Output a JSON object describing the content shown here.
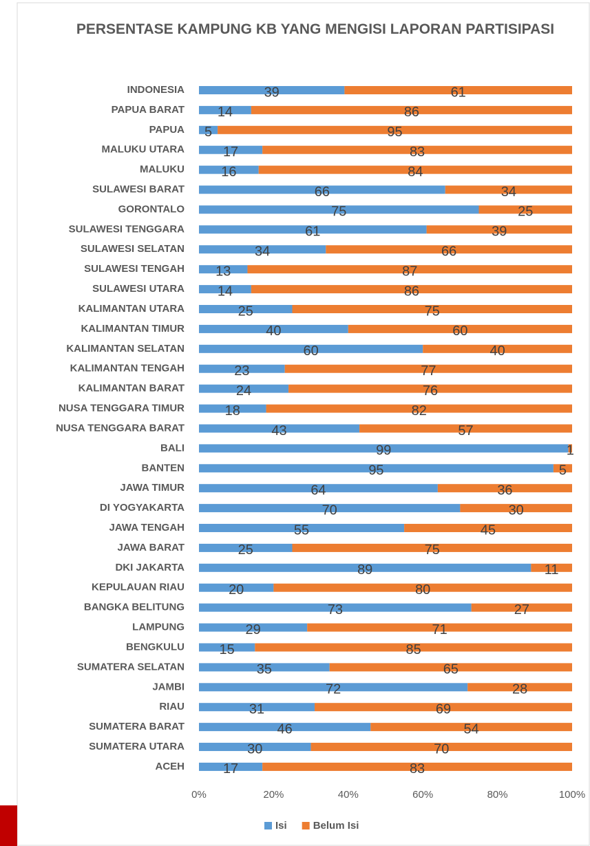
{
  "chart_data": {
    "type": "stacked-bar-horizontal",
    "title": "PERSENTASE KAMPUNG KB YANG MENGISI LAPORAN PARTISIPASI",
    "categories": [
      "INDONESIA",
      "PAPUA BARAT",
      "PAPUA",
      "MALUKU UTARA",
      "MALUKU",
      "SULAWESI BARAT",
      "GORONTALO",
      "SULAWESI TENGGARA",
      "SULAWESI SELATAN",
      "SULAWESI TENGAH",
      "SULAWESI UTARA",
      "KALIMANTAN UTARA",
      "KALIMANTAN TIMUR",
      "KALIMANTAN SELATAN",
      "KALIMANTAN TENGAH",
      "KALIMANTAN BARAT",
      "NUSA TENGGARA TIMUR",
      "NUSA TENGGARA BARAT",
      "BALI",
      "BANTEN",
      "JAWA TIMUR",
      "DI YOGYAKARTA",
      "JAWA TENGAH",
      "JAWA BARAT",
      "DKI JAKARTA",
      "KEPULAUAN RIAU",
      "BANGKA BELITUNG",
      "LAMPUNG",
      "BENGKULU",
      "SUMATERA SELATAN",
      "JAMBI",
      "RIAU",
      "SUMATERA BARAT",
      "SUMATERA UTARA",
      "ACEH"
    ],
    "series": [
      {
        "name": "Isi",
        "color": "#5b9bd5",
        "values": [
          39,
          14,
          5,
          17,
          16,
          66,
          75,
          61,
          34,
          13,
          14,
          25,
          40,
          60,
          23,
          24,
          18,
          43,
          99,
          95,
          64,
          70,
          55,
          25,
          89,
          20,
          73,
          29,
          15,
          35,
          72,
          31,
          46,
          30,
          17
        ]
      },
      {
        "name": "Belum Isi",
        "color": "#ed7d31",
        "values": [
          61,
          86,
          95,
          83,
          84,
          34,
          25,
          39,
          66,
          87,
          86,
          75,
          60,
          40,
          77,
          76,
          82,
          57,
          1,
          5,
          36,
          30,
          45,
          75,
          11,
          80,
          27,
          71,
          85,
          65,
          28,
          69,
          54,
          70,
          83
        ]
      }
    ],
    "xlim": [
      0,
      100
    ],
    "xticks": [
      {
        "value": 0,
        "label": "0%"
      },
      {
        "value": 20,
        "label": "20%"
      },
      {
        "value": 40,
        "label": "40%"
      },
      {
        "value": 60,
        "label": "60%"
      },
      {
        "value": 80,
        "label": "80%"
      },
      {
        "value": 100,
        "label": "100%"
      }
    ],
    "grid": false,
    "legend": "bottom"
  }
}
